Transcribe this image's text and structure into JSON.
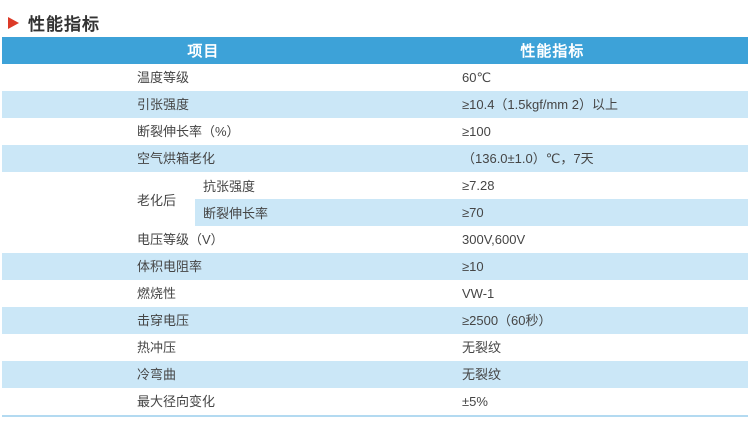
{
  "title": {
    "text": "性能指标"
  },
  "table": {
    "header": {
      "col1": "项目",
      "col2": "性能指标"
    },
    "rows_top": [
      {
        "label": "温度等级",
        "value": "60℃"
      },
      {
        "label": "引张强度",
        "value": "≥10.4（1.5kgf/mm 2）以上"
      },
      {
        "label": "断裂伸长率（%）",
        "value": "≥100"
      },
      {
        "label": "空气烘箱老化",
        "value": "（136.0±1.0）℃，7天"
      }
    ],
    "aging": {
      "label": "老化后",
      "sub_rows": [
        {
          "label": "抗张强度",
          "value": "≥7.28"
        },
        {
          "label": "断裂伸长率",
          "value": "≥70"
        }
      ]
    },
    "rows_bottom": [
      {
        "label": "电压等级（V）",
        "value": "300V,600V"
      },
      {
        "label": "体积电阻率",
        "value": "≥10"
      },
      {
        "label": "燃烧性",
        "value": "VW-1"
      },
      {
        "label": "击穿电压",
        "value": "≥2500（60秒）"
      },
      {
        "label": "热冲压",
        "value": "无裂纹"
      },
      {
        "label": "冷弯曲",
        "value": "无裂纹"
      },
      {
        "label": "最大径向变化",
        "value": "±5%"
      }
    ]
  },
  "colors": {
    "header_bg": "#3da2d8",
    "stripe_bg": "#cbe7f7",
    "arrow_red": "#dc3a28",
    "bottom_border": "#b3daf1",
    "text": "#454545",
    "header_text": "#ffffff"
  }
}
